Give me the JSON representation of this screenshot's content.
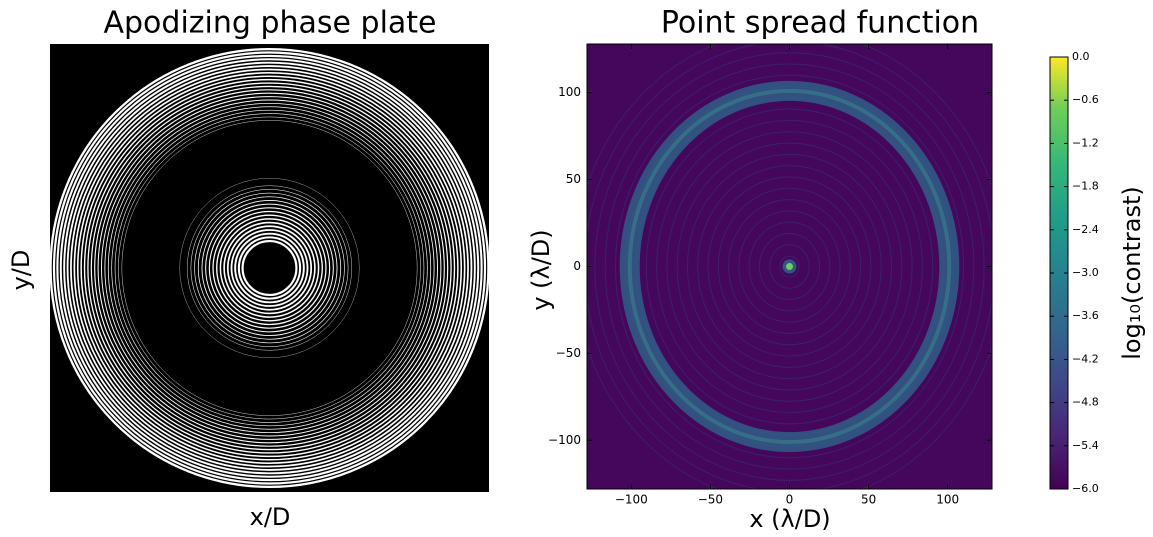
{
  "chart_data": [
    {
      "type": "image",
      "title": "Apodizing phase plate",
      "xlabel": "x/D",
      "ylabel": "y/D"
    },
    {
      "type": "heatmap",
      "title": "Point spread function",
      "xlabel": "x (λ/D)",
      "ylabel": "y (λ/D)",
      "xlim": [
        -128,
        128
      ],
      "ylim": [
        -128,
        128
      ],
      "xticks": [
        {
          "value": -100,
          "label": "−100"
        },
        {
          "value": -50,
          "label": "−50"
        },
        0,
        50,
        100
      ],
      "yticks": [
        {
          "value": -100,
          "label": "−100"
        },
        {
          "value": -50,
          "label": "−50"
        },
        0,
        50,
        100
      ],
      "colorbar": {
        "label": "log₁₀(contrast)",
        "lim": [
          -6,
          0
        ],
        "colormap": "viridis",
        "ticks": [
          {
            "value": 0,
            "label": "0.0"
          },
          {
            "value": -0.6,
            "label": "−0.6"
          },
          {
            "value": -1.2,
            "label": "−1.2"
          },
          {
            "value": -1.8,
            "label": "−1.8"
          },
          {
            "value": -2.4,
            "label": "−2.4"
          },
          {
            "value": -3.0,
            "label": "−3.0"
          },
          {
            "value": -3.6,
            "label": "−3.6"
          },
          {
            "value": -4.2,
            "label": "−4.2"
          },
          {
            "value": -4.8,
            "label": "−4.8"
          },
          {
            "value": -5.4,
            "label": "−5.4"
          },
          {
            "value": -6.0,
            "label": "−6.0"
          }
        ]
      }
    }
  ]
}
